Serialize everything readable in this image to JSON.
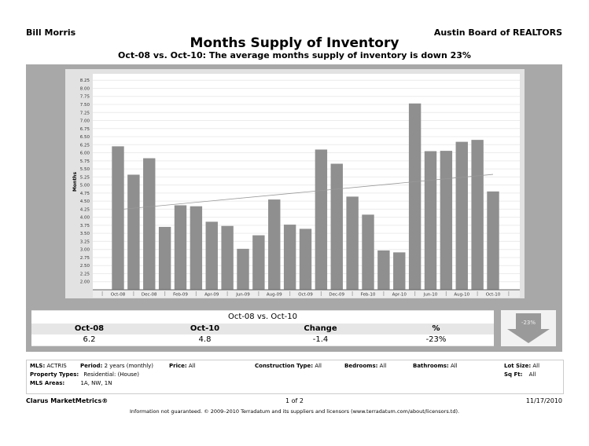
{
  "header": {
    "agent": "Bill Morris",
    "board": "Austin Board of REALTORS",
    "title": "Months Supply of Inventory",
    "subtitle": "Oct-08 vs. Oct-10:  The average months supply of inventory is down 23%"
  },
  "chart_data": {
    "type": "bar",
    "title": "",
    "xlabel": "",
    "ylabel": "Months",
    "ylim": [
      1.75,
      8.45
    ],
    "yticks": [
      "2.00",
      "2.25",
      "2.50",
      "2.75",
      "3.00",
      "3.25",
      "3.50",
      "3.75",
      "4.00",
      "4.25",
      "4.50",
      "4.75",
      "5.00",
      "5.25",
      "5.50",
      "5.75",
      "6.00",
      "6.25",
      "6.50",
      "6.75",
      "7.00",
      "7.25",
      "7.50",
      "7.75",
      "8.00",
      "8.25"
    ],
    "grid": true,
    "categories": [
      "Oct-08",
      "Nov-08",
      "Dec-08",
      "Jan-09",
      "Feb-09",
      "Mar-09",
      "Apr-09",
      "May-09",
      "Jun-09",
      "Jul-09",
      "Aug-09",
      "Sep-09",
      "Oct-09",
      "Nov-09",
      "Dec-09",
      "Jan-10",
      "Feb-10",
      "Mar-10",
      "Apr-10",
      "May-10",
      "Jun-10",
      "Jul-10",
      "Aug-10",
      "Sep-10",
      "Oct-10"
    ],
    "xtick_labels": [
      "Oct-08",
      "",
      "Dec-08",
      "",
      "Feb-09",
      "",
      "Apr-09",
      "",
      "Jun-09",
      "",
      "Aug-09",
      "",
      "Oct-09",
      "",
      "Dec-09",
      "",
      "Feb-10",
      "",
      "Apr-10",
      "",
      "Jun-10",
      "",
      "Aug-10",
      "",
      "Oct-10"
    ],
    "values": [
      6.2,
      5.32,
      5.83,
      3.7,
      4.37,
      4.34,
      3.86,
      3.73,
      3.02,
      3.44,
      4.55,
      3.77,
      3.64,
      6.1,
      5.66,
      4.64,
      4.08,
      2.97,
      2.91,
      7.53,
      6.05,
      6.06,
      6.34,
      6.4,
      4.8
    ],
    "trendline": {
      "start": 4.25,
      "end": 5.33
    },
    "bar_color": "#8f8f8f"
  },
  "summary": {
    "title": "Oct-08 vs. Oct-10",
    "headers": [
      "Oct-08",
      "Oct-10",
      "Change",
      "%"
    ],
    "values": [
      "6.2",
      "4.8",
      "-1.4",
      "-23%"
    ],
    "arrow_label": "-23%",
    "arrow_direction": "down"
  },
  "details": {
    "mls_label": "MLS:",
    "mls": "ACTRIS",
    "period_label": "Period:",
    "period": "2 years (monthly)",
    "price_label": "Price:",
    "price": "All",
    "construction_label": "Construction Type:",
    "construction": "All",
    "bedrooms_label": "Bedrooms:",
    "bedrooms": "All",
    "bathrooms_label": "Bathrooms:",
    "bathrooms": "All",
    "lot_label": "Lot Size:",
    "lot": "All",
    "ptype_label": "Property Types:",
    "ptype": "Residential: (House)",
    "sqft_label": "Sq Ft:",
    "sqft": "All",
    "areas_label": "MLS Areas:",
    "areas": "1A, NW, 1N"
  },
  "footer": {
    "brand": "Clarus MarketMetrics®",
    "page": "1 of 2",
    "date": "11/17/2010",
    "disclaimer": "Information not guaranteed.  © 2009–2010 Terradatum and its suppliers and licensors (www.terradatum.com/about/licensors.td)."
  }
}
